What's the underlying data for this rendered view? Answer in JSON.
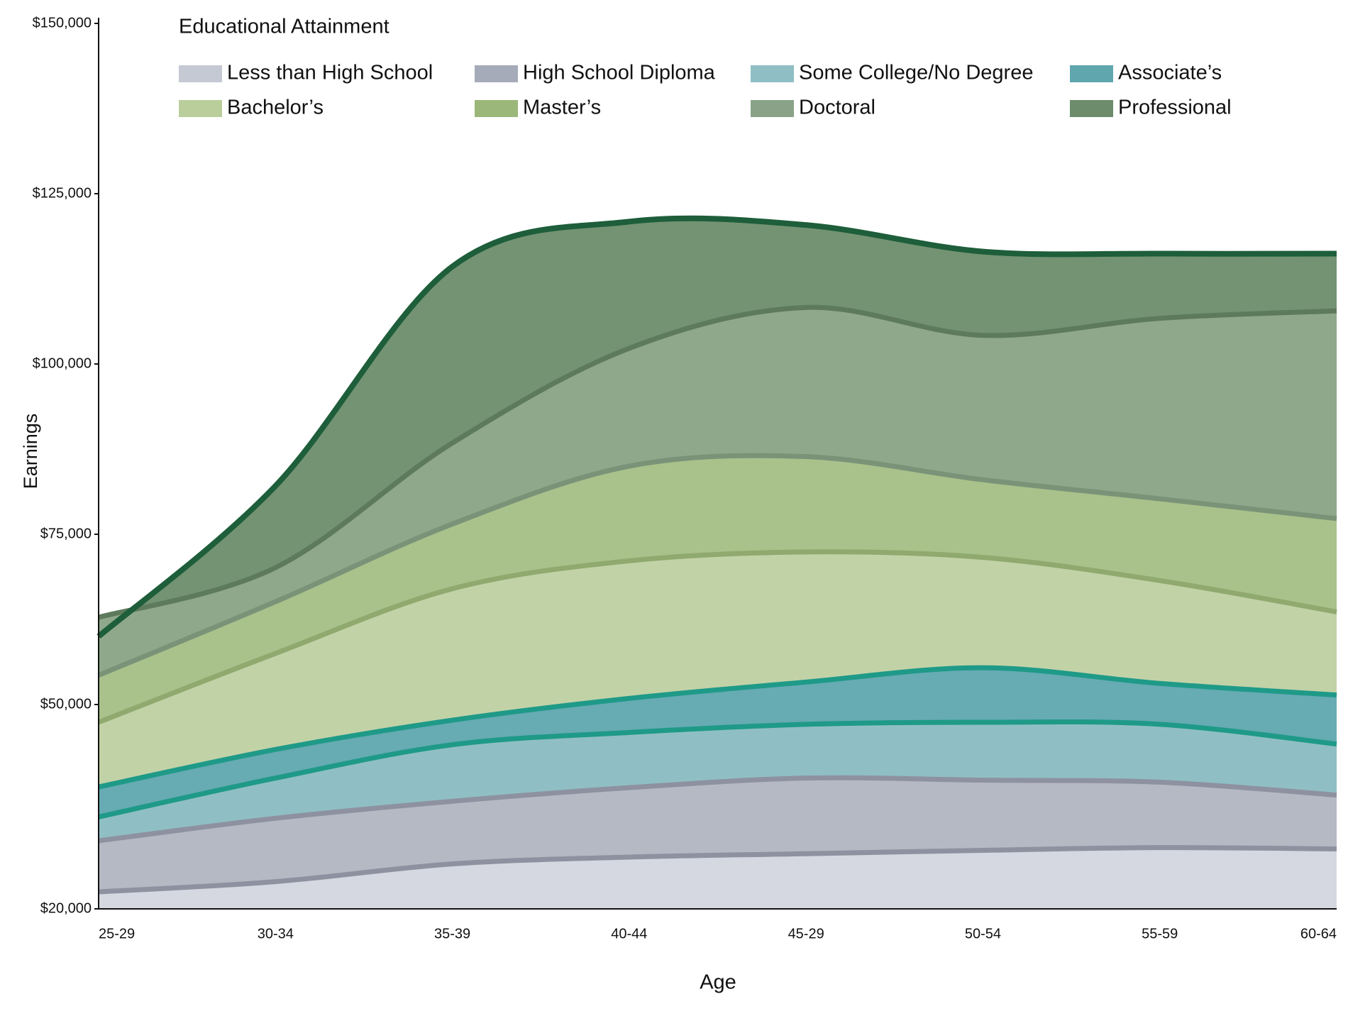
{
  "chart_data": {
    "type": "area",
    "legend_title": "Educational Attainment",
    "x_label": "Age",
    "y_label": "Earnings",
    "categories": [
      "25-29",
      "30-34",
      "35-39",
      "40-44",
      "45-29",
      "50-54",
      "55-59",
      "60-64"
    ],
    "ylim": [
      20000,
      150000
    ],
    "yticks": [
      {
        "value": 20000,
        "label": "$20,000"
      },
      {
        "value": 50000,
        "label": "$50,000"
      },
      {
        "value": 75000,
        "label": "$75,000"
      },
      {
        "value": 100000,
        "label": "$100,000"
      },
      {
        "value": 125000,
        "label": "$125,000"
      },
      {
        "value": 150000,
        "label": "$150,000"
      }
    ],
    "grid": false,
    "series": [
      {
        "name": "Less than High School",
        "color": "#c5c9d3",
        "fill": "#d5d8e1",
        "line_color": "#8e92a0",
        "values": [
          22500,
          24000,
          26600,
          27600,
          28100,
          28600,
          29000,
          28800
        ]
      },
      {
        "name": "High School Diploma",
        "color": "#a5abb8",
        "fill": "#b4b9c4",
        "line_color": "#8e92a0",
        "values": [
          30000,
          33300,
          35800,
          37800,
          39200,
          38900,
          38600,
          36700
        ]
      },
      {
        "name": "Some College/No Degree",
        "color": "#8fbfc4",
        "fill": "#8fbfc4",
        "line_color": "#1f9a88",
        "values": [
          33500,
          39200,
          44100,
          45900,
          47100,
          47400,
          47100,
          44200
        ]
      },
      {
        "name": "Associate’s",
        "color": "#5fa6ae",
        "fill": "#67abb3",
        "line_color": "#1f9a88",
        "values": [
          37900,
          43400,
          47700,
          50900,
          53300,
          55400,
          53100,
          51400
        ]
      },
      {
        "name": "Bachelor’s",
        "color": "#b9ce9b",
        "fill": "#c2d2a7",
        "line_color": "#8fa96e",
        "values": [
          47400,
          57500,
          67000,
          71100,
          72400,
          71600,
          68200,
          63600
        ]
      },
      {
        "name": "Master’s",
        "color": "#9bb77a",
        "fill": "#a9c18b",
        "line_color": "#7a9378",
        "values": [
          54300,
          65100,
          76500,
          85000,
          86400,
          83000,
          80200,
          77300
        ]
      },
      {
        "name": "Doctoral",
        "color": "#8aa388",
        "fill": "#8fa88b",
        "line_color": "#5e7a5c",
        "values": [
          62800,
          70100,
          88400,
          102300,
          108300,
          104200,
          106700,
          107800
        ]
      },
      {
        "name": "Professional",
        "color": "#6c8c6c",
        "fill": "#739373",
        "line_color": "#1e5e3a",
        "values": [
          60000,
          82100,
          114300,
          120900,
          120400,
          116500,
          116200,
          116200
        ]
      }
    ]
  }
}
